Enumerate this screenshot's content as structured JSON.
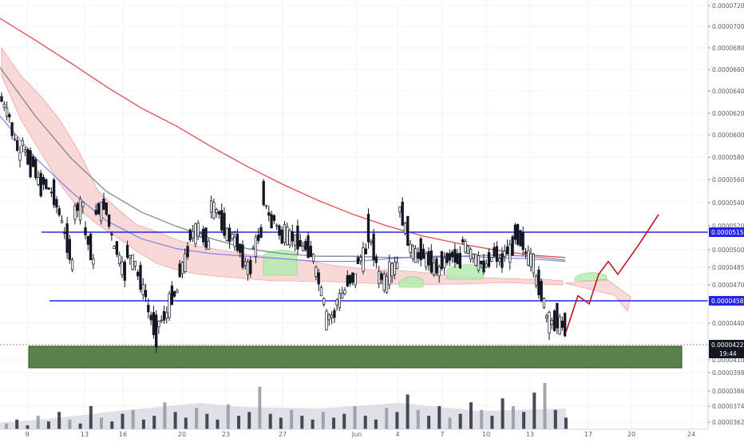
{
  "chart_data": {
    "type": "candlestick",
    "title": "",
    "xlabel": "",
    "ylabel": "",
    "ylim": [
      3.62e-05,
      7.2e-05
    ],
    "y_scale": "log",
    "grid": true,
    "x_ticks": [
      "9",
      "13",
      "16",
      "20",
      "23",
      "27",
      "Jun",
      "4",
      "7",
      "10",
      "13",
      "17",
      "20",
      "24"
    ],
    "y_ticks": [
      "0.0000720",
      "0.0000700",
      "0.0000680",
      "0.0000660",
      "0.0000640",
      "0.0000620",
      "0.0000600",
      "0.0000580",
      "0.0000560",
      "0.0000540",
      "0.0000520",
      "0.0000500",
      "0.0000485",
      "0.0000470",
      "0.0000440",
      "0.0000410",
      "0.0000398",
      "0.0000386",
      "0.0000374",
      "0.0000362"
    ],
    "price_tags": [
      {
        "label": "0.0000515",
        "color": "#2424e6",
        "kind": "resistance"
      },
      {
        "label": "0.0000458",
        "color": "#2424e6",
        "kind": "support"
      },
      {
        "label": "0.0000422",
        "color": "#131722",
        "kind": "last-price"
      }
    ],
    "countdown": "19:44",
    "price_path": [
      [
        6.2e-05,
        5.98e-05
      ],
      [
        5.9e-05,
        5.6e-05
      ],
      [
        5.8e-05,
        5.48e-05
      ],
      [
        5.6e-05,
        5.3e-05
      ],
      [
        5.4e-05,
        5.28e-05
      ],
      [
        5.3e-05,
        5.02e-05
      ],
      [
        5e-05,
        4.68e-05
      ],
      [
        5.12e-05,
        5.2e-05
      ],
      [
        5e-05,
        4.7e-05
      ],
      [
        5.1e-05,
        5.18e-05
      ],
      [
        5.2e-05,
        4.8e-05
      ],
      [
        4.85e-05,
        4.6e-05
      ],
      [
        4.8e-05,
        4.7e-05
      ],
      [
        4.65e-05,
        4.45e-05
      ],
      [
        4.4e-05,
        4.15e-05
      ],
      [
        4.25e-05,
        4.33e-05
      ],
      [
        4.4e-05,
        4.5e-05
      ],
      [
        4.6e-05,
        4.8e-05
      ],
      [
        4.9e-05,
        5e-05
      ],
      [
        4.95e-05,
        4.85e-05
      ],
      [
        5.2e-05,
        5.1e-05
      ],
      [
        5.05e-05,
        4.9e-05
      ],
      [
        4.95e-05,
        4.8e-05
      ],
      [
        4.75e-05,
        4.65e-05
      ],
      [
        4.8e-05,
        4.95e-05
      ],
      [
        5.3e-05,
        5e-05
      ],
      [
        5.1e-05,
        4.88e-05
      ],
      [
        4.98e-05,
        4.9e-05
      ],
      [
        4.92e-05,
        4.82e-05
      ],
      [
        4.85e-05,
        4.75e-05
      ],
      [
        4.7e-05,
        4.4e-05
      ],
      [
        4.3e-05,
        4.32e-05
      ],
      [
        4.4e-05,
        4.5e-05
      ],
      [
        4.55e-05,
        4.6e-05
      ],
      [
        4.7e-05,
        4.8e-05
      ],
      [
        5e-05,
        4.7e-05
      ],
      [
        4.62e-05,
        4.56e-05
      ],
      [
        4.65e-05,
        4.7e-05
      ],
      [
        5.2e-05,
        4.9e-05
      ],
      [
        4.85e-05,
        4.75e-05
      ],
      [
        4.8e-05,
        4.72e-05
      ],
      [
        4.7e-05,
        4.65e-05
      ],
      [
        4.7e-05,
        4.75e-05
      ],
      [
        4.78e-05,
        4.7e-05
      ],
      [
        4.9e-05,
        4.78e-05
      ],
      [
        4.78e-05,
        4.7e-05
      ],
      [
        4.65e-05,
        4.75e-05
      ],
      [
        4.8e-05,
        4.7e-05
      ],
      [
        4.78e-05,
        4.82e-05
      ],
      [
        4.95e-05,
        4.85e-05
      ],
      [
        4.8e-05,
        4.72e-05
      ],
      [
        4.62e-05,
        4.4e-05
      ],
      [
        4.32e-05,
        4.25e-05
      ],
      [
        4.3e-05,
        4.22e-05
      ]
    ],
    "series": [
      {
        "name": "",
        "color": "#e0383e",
        "values": [
          7.05e-05,
          6.8e-05,
          6.55e-05,
          6.3e-05,
          6.08e-05,
          5.9e-05,
          5.7e-05,
          5.52e-05,
          5.36e-05,
          5.22e-05,
          5.1e-05,
          5e-05,
          4.92e-05,
          4.86e-05,
          4.81e-05,
          4.77e-05,
          4.75e-05
        ]
      },
      {
        "name": "",
        "color": "#787b86",
        "values": [
          6.5e-05,
          6e-05,
          5.6e-05,
          5.3e-05,
          5.12e-05,
          5e-05,
          4.9e-05,
          4.82e-05,
          4.78e-05,
          4.76e-05,
          4.76e-05,
          4.75e-05,
          4.75e-05,
          4.76e-05,
          4.77e-05,
          4.76e-05,
          4.73e-05
        ]
      },
      {
        "name": "",
        "color": "#7b7be8",
        "values": [
          6e-05,
          5.6e-05,
          5.3e-05,
          5.05e-05,
          4.9e-05,
          4.82e-05,
          4.78e-05,
          4.76e-05,
          4.74e-05,
          4.72e-05,
          4.72e-05,
          4.74e-05,
          4.76e-05,
          4.76e-05,
          4.75e-05,
          4.74e-05,
          4.72e-05
        ]
      }
    ],
    "projection": [
      4.2e-05,
      4.46e-05,
      4.4e-05,
      4.62e-05,
      4.72e-05,
      4.62e-05,
      4.85e-05,
      5.1e-05
    ],
    "volume": [
      3,
      5,
      2,
      7,
      4,
      9,
      5,
      3,
      12,
      6,
      4,
      8,
      10,
      5,
      7,
      14,
      9,
      6,
      11,
      8,
      5,
      13,
      7,
      9,
      22,
      8,
      6,
      10,
      7,
      5,
      9,
      6,
      8,
      12,
      7,
      5,
      11,
      9,
      18,
      10,
      7,
      12,
      6,
      8,
      14,
      10,
      7,
      16,
      12,
      9,
      19,
      24,
      10,
      6
    ]
  }
}
